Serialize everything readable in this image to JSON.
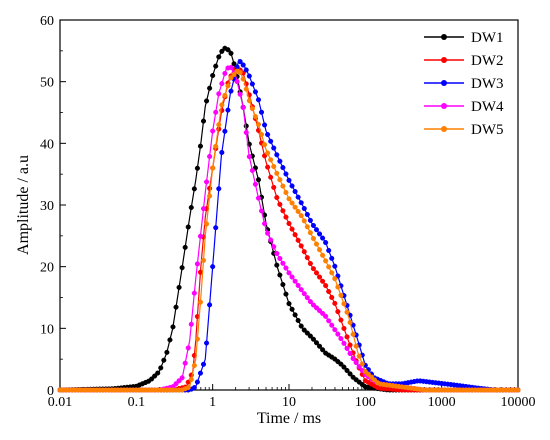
{
  "chart_data": {
    "type": "line",
    "xlabel": "Time / ms",
    "ylabel": "Amplitude / a.u",
    "xscale": "log",
    "xlim": [
      0.01,
      10000
    ],
    "ylim": [
      0,
      60
    ],
    "x_ticks": [
      0.01,
      0.1,
      1,
      10,
      100,
      1000,
      10000
    ],
    "x_tick_labels": [
      "0.01",
      "0.1",
      "1",
      "10",
      "100",
      "1000",
      "10000"
    ],
    "y_ticks": [
      0,
      10,
      20,
      30,
      40,
      50,
      60
    ],
    "y_tick_labels": [
      "0",
      "10",
      "20",
      "30",
      "40",
      "50",
      "60"
    ],
    "grid": false,
    "legend_position": "top-right",
    "series": [
      {
        "name": "DW1",
        "color": "#000000",
        "points": [
          [
            0.01,
            0
          ],
          [
            0.05,
            0.2
          ],
          [
            0.1,
            0.6
          ],
          [
            0.15,
            1.5
          ],
          [
            0.2,
            3
          ],
          [
            0.25,
            6
          ],
          [
            0.3,
            10
          ],
          [
            0.4,
            20
          ],
          [
            0.5,
            28
          ],
          [
            0.6,
            34
          ],
          [
            0.7,
            40
          ],
          [
            0.8,
            46
          ],
          [
            1,
            51
          ],
          [
            1.2,
            54
          ],
          [
            1.4,
            55.5
          ],
          [
            1.7,
            55
          ],
          [
            2,
            52
          ],
          [
            2.5,
            46
          ],
          [
            3,
            40
          ],
          [
            4,
            34
          ],
          [
            5,
            27
          ],
          [
            7,
            20
          ],
          [
            10,
            14
          ],
          [
            15,
            10
          ],
          [
            20,
            8.5
          ],
          [
            30,
            6
          ],
          [
            40,
            5
          ],
          [
            50,
            4
          ],
          [
            70,
            2
          ],
          [
            100,
            0.5
          ],
          [
            200,
            0
          ],
          [
            10000,
            0
          ]
        ]
      },
      {
        "name": "DW2",
        "color": "#ff0000",
        "points": [
          [
            0.01,
            0
          ],
          [
            0.3,
            0
          ],
          [
            0.45,
            0.5
          ],
          [
            0.55,
            3
          ],
          [
            0.6,
            8
          ],
          [
            0.7,
            20
          ],
          [
            0.8,
            28
          ],
          [
            1,
            36
          ],
          [
            1.3,
            45
          ],
          [
            1.6,
            50
          ],
          [
            2,
            52.5
          ],
          [
            2.5,
            51.5
          ],
          [
            3,
            48
          ],
          [
            4,
            42
          ],
          [
            5,
            37
          ],
          [
            7,
            31
          ],
          [
            10,
            27
          ],
          [
            15,
            23
          ],
          [
            20,
            20
          ],
          [
            30,
            17
          ],
          [
            40,
            14
          ],
          [
            60,
            8
          ],
          [
            80,
            4
          ],
          [
            100,
            1.5
          ],
          [
            150,
            0.3
          ],
          [
            300,
            0
          ],
          [
            10000,
            0
          ]
        ]
      },
      {
        "name": "DW3",
        "color": "#0000ff",
        "points": [
          [
            0.01,
            0
          ],
          [
            0.5,
            0
          ],
          [
            0.6,
            0.5
          ],
          [
            0.8,
            5
          ],
          [
            1,
            20
          ],
          [
            1.3,
            38
          ],
          [
            1.7,
            48
          ],
          [
            2.2,
            53.5
          ],
          [
            2.6,
            52.5
          ],
          [
            3,
            51
          ],
          [
            4,
            47
          ],
          [
            5,
            42
          ],
          [
            7,
            38
          ],
          [
            10,
            34
          ],
          [
            15,
            30
          ],
          [
            20,
            27
          ],
          [
            30,
            24
          ],
          [
            40,
            20
          ],
          [
            60,
            13
          ],
          [
            80,
            8
          ],
          [
            100,
            4
          ],
          [
            130,
            2
          ],
          [
            200,
            1
          ],
          [
            300,
            1
          ],
          [
            500,
            1.5
          ],
          [
            800,
            1.2
          ],
          [
            1500,
            0.8
          ],
          [
            3000,
            0.3
          ],
          [
            5000,
            0
          ],
          [
            10000,
            0
          ]
        ]
      },
      {
        "name": "DW4",
        "color": "#ff00ff",
        "points": [
          [
            0.01,
            0
          ],
          [
            0.2,
            0
          ],
          [
            0.3,
            0.5
          ],
          [
            0.4,
            2
          ],
          [
            0.5,
            8
          ],
          [
            0.6,
            18
          ],
          [
            0.8,
            32
          ],
          [
            1,
            42
          ],
          [
            1.2,
            48
          ],
          [
            1.5,
            52
          ],
          [
            1.7,
            52.5
          ],
          [
            2,
            51
          ],
          [
            2.5,
            46
          ],
          [
            3,
            38
          ],
          [
            4,
            31
          ],
          [
            5,
            26
          ],
          [
            7,
            22
          ],
          [
            10,
            19
          ],
          [
            15,
            16
          ],
          [
            20,
            14
          ],
          [
            30,
            12
          ],
          [
            50,
            8
          ],
          [
            70,
            5
          ],
          [
            100,
            2.5
          ],
          [
            150,
            1
          ],
          [
            300,
            0.5
          ],
          [
            600,
            0
          ],
          [
            10000,
            0
          ]
        ]
      },
      {
        "name": "DW5",
        "color": "#ff8000",
        "points": [
          [
            0.01,
            0
          ],
          [
            0.4,
            0
          ],
          [
            0.5,
            0.5
          ],
          [
            0.6,
            5
          ],
          [
            0.7,
            15
          ],
          [
            0.8,
            25
          ],
          [
            1,
            36
          ],
          [
            1.3,
            46
          ],
          [
            1.7,
            50.5
          ],
          [
            2.2,
            52
          ],
          [
            2.6,
            50
          ],
          [
            3,
            47
          ],
          [
            4,
            43
          ],
          [
            5,
            39
          ],
          [
            7,
            35
          ],
          [
            10,
            31
          ],
          [
            15,
            28
          ],
          [
            20,
            25
          ],
          [
            30,
            21
          ],
          [
            40,
            18
          ],
          [
            60,
            12
          ],
          [
            80,
            6
          ],
          [
            100,
            3
          ],
          [
            150,
            1
          ],
          [
            300,
            0.5
          ],
          [
            600,
            0
          ],
          [
            10000,
            0
          ]
        ]
      }
    ]
  }
}
